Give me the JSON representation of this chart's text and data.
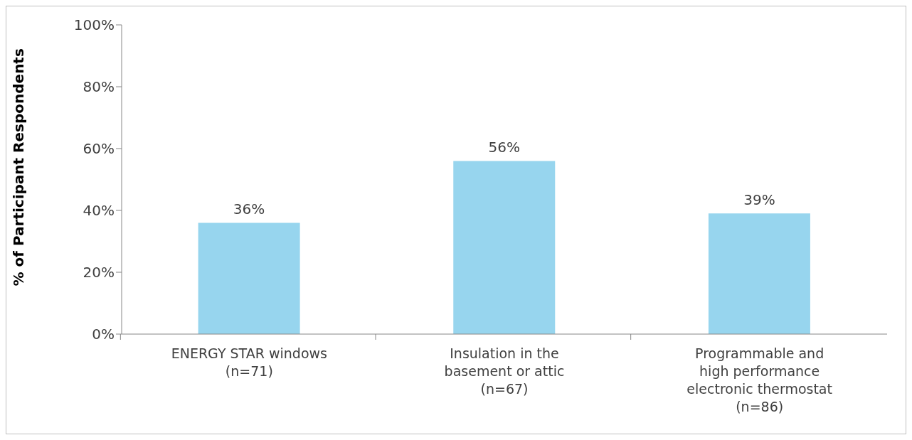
{
  "chart_data": {
    "type": "bar",
    "ylabel": "% of Participant Respondents",
    "categories": [
      "ENERGY STAR windows\n(n=71)",
      "Insulation in the\nbasement or attic\n(n=67)",
      "Programmable and\nhigh performance\nelectronic thermostat\n(n=86)"
    ],
    "values": [
      36,
      56,
      39
    ],
    "color": "#97d5ee",
    "value_labels": [
      "36%",
      "56%",
      "39%"
    ],
    "ylim": [
      0,
      100
    ],
    "yticks": [
      {
        "value": 0,
        "label": "0%"
      },
      {
        "value": 20,
        "label": "20%"
      },
      {
        "value": 40,
        "label": "40%"
      },
      {
        "value": 60,
        "label": "60%"
      },
      {
        "value": 80,
        "label": "80%"
      },
      {
        "value": 100,
        "label": "100%"
      }
    ],
    "grid": false,
    "legend": false
  }
}
